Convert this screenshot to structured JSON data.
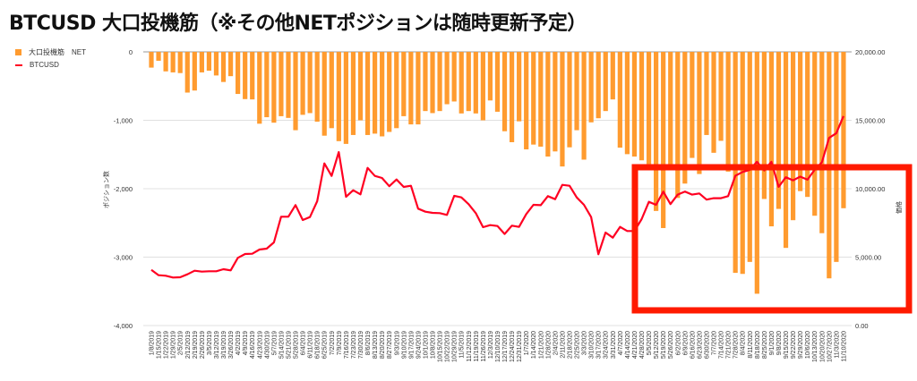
{
  "title": "BTCUSD 大口投機筋（※その他NETポジションは随時更新予定）",
  "colors": {
    "bar": "#ff9b2f",
    "line": "#ff0022",
    "annotation": "#ff1a00",
    "grid": "#e0e0e0"
  },
  "chart_data": {
    "type": "bar+line",
    "title": "BTCUSD 大口投機筋（※その他NETポジションは随時更新予定）",
    "legend": [
      "大口投機筋　NET",
      "BTCUSD"
    ],
    "legend_position": "top-left",
    "ylabel_left": "ポジション数",
    "ylabel_right": "価格",
    "ylim_left": [
      -4000,
      0
    ],
    "ylim_right": [
      0,
      20000
    ],
    "left_ticks": [
      "0",
      "-1,000",
      "-2,000",
      "-3,000",
      "-4,000"
    ],
    "right_ticks": [
      "20,000.00",
      "15,000.00",
      "10,000.00",
      "5,000.00",
      "0.00"
    ],
    "grid": true,
    "x": [
      "1/8/2019",
      "1/15/2019",
      "1/22/2019",
      "1/29/2019",
      "2/5/2019",
      "2/12/2019",
      "2/19/2019",
      "2/26/2019",
      "3/5/2019",
      "3/12/2019",
      "3/19/2019",
      "3/26/2019",
      "4/2/2019",
      "4/9/2019",
      "4/16/2019",
      "4/23/2019",
      "4/30/2019",
      "5/7/2019",
      "5/14/2019",
      "5/21/2019",
      "5/28/2019",
      "6/4/2019",
      "6/11/2019",
      "6/18/2019",
      "6/25/2019",
      "7/2/2019",
      "7/9/2019",
      "7/16/2019",
      "7/23/2019",
      "7/30/2019",
      "8/6/2019",
      "8/13/2019",
      "8/20/2019",
      "8/27/2019",
      "9/3/2019",
      "9/10/2019",
      "9/17/2019",
      "9/24/2019",
      "10/1/2019",
      "10/8/2019",
      "10/15/2019",
      "10/22/2019",
      "10/29/2019",
      "11/5/2019",
      "11/12/2019",
      "11/19/2019",
      "11/26/2019",
      "12/3/2019",
      "12/10/2019",
      "12/17/2019",
      "12/24/2019",
      "12/31/2019",
      "1/7/2020",
      "1/14/2020",
      "1/21/2020",
      "1/28/2020",
      "2/4/2020",
      "2/11/2020",
      "2/18/2020",
      "2/25/2020",
      "3/3/2020",
      "3/10/2020",
      "3/17/2020",
      "3/24/2020",
      "3/31/2020",
      "4/7/2020",
      "4/14/2020",
      "4/21/2020",
      "4/28/2020",
      "5/5/2020",
      "5/12/2020",
      "5/19/2020",
      "5/26/2020",
      "6/2/2020",
      "6/9/2020",
      "6/16/2020",
      "6/23/2020",
      "6/30/2020",
      "7/7/2020",
      "7/14/2020",
      "7/21/2020",
      "7/28/2020",
      "8/4/2020",
      "8/11/2020",
      "8/18/2020",
      "8/25/2020",
      "9/1/2020",
      "9/8/2020",
      "9/15/2020",
      "9/22/2020",
      "9/29/2020",
      "10/6/2020",
      "10/13/2020",
      "10/20/2020",
      "10/27/2020",
      "11/3/2020",
      "11/10/2020"
    ],
    "series": [
      {
        "name": "大口投機筋　NET",
        "type": "bar",
        "axis": "left",
        "values": [
          -230,
          -130,
          -285,
          -300,
          -310,
          -595,
          -565,
          -300,
          -275,
          -345,
          -440,
          -355,
          -615,
          -690,
          -695,
          -1050,
          -955,
          -1035,
          -940,
          -965,
          -1145,
          -920,
          -895,
          -1020,
          -1225,
          -1115,
          -1305,
          -1345,
          -1215,
          -1000,
          -1215,
          -1195,
          -1235,
          -1170,
          -1115,
          -940,
          -1060,
          -1060,
          -865,
          -895,
          -865,
          -765,
          -725,
          -900,
          -865,
          -900,
          -1000,
          -710,
          -875,
          -1160,
          -1320,
          -1015,
          -1425,
          -1355,
          -1385,
          -1530,
          -1455,
          -1675,
          -1395,
          -1145,
          -1575,
          -1030,
          -970,
          -865,
          -695,
          -1400,
          -1495,
          -1530,
          -1585,
          -1640,
          -2325,
          -2575,
          -1700,
          -2135,
          -1925,
          -1550,
          -1785,
          -1215,
          -1475,
          -1300,
          -1750,
          -3230,
          -3245,
          -3070,
          -3535,
          -2150,
          -2550,
          -2295,
          -2865,
          -2460,
          -2035,
          -2120,
          -2395,
          -2650,
          -3310,
          -3070,
          -2285
        ]
      },
      {
        "name": "BTCUSD",
        "type": "line",
        "axis": "right",
        "values": [
          4070,
          3680,
          3640,
          3510,
          3530,
          3745,
          4005,
          3940,
          3965,
          3965,
          4120,
          4035,
          4950,
          5230,
          5250,
          5555,
          5620,
          6080,
          7955,
          7955,
          8805,
          7710,
          7930,
          9085,
          11850,
          10935,
          12680,
          9410,
          9890,
          9590,
          11525,
          10935,
          10785,
          10180,
          10675,
          10130,
          10215,
          8540,
          8320,
          8235,
          8215,
          8085,
          9475,
          9365,
          8870,
          8215,
          7190,
          7340,
          7275,
          6690,
          7300,
          7210,
          8150,
          8825,
          8800,
          9455,
          9235,
          10280,
          10215,
          9365,
          8825,
          7930,
          5210,
          6800,
          6425,
          7210,
          6910,
          6910,
          7780,
          9040,
          8825,
          9785,
          8875,
          9570,
          9790,
          9570,
          9655,
          9200,
          9310,
          9310,
          9460,
          10945,
          11225,
          11380,
          11970,
          11335,
          11970,
          10135,
          10835,
          10615,
          10880,
          10660,
          11380,
          11925,
          13710,
          14060,
          15305
        ]
      }
    ]
  }
}
